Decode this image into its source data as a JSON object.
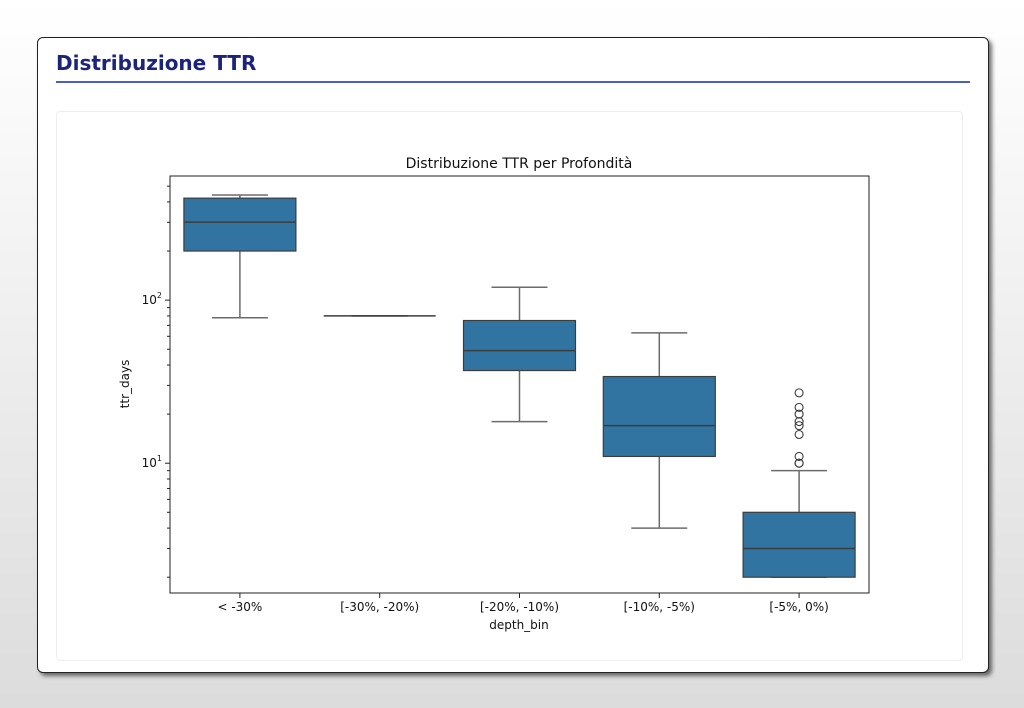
{
  "header": {
    "title": "Distribuzione TTR"
  },
  "chart_data": {
    "type": "box",
    "title": "Distribuzione TTR per Profondità",
    "xlabel": "depth_bin",
    "ylabel": "ttr_days",
    "yscale": "log",
    "ylim": [
      1.6,
      577
    ],
    "ytick_labels": [
      {
        "value": 10,
        "base": "10",
        "exp": "1"
      },
      {
        "value": 100,
        "base": "10",
        "exp": "2"
      }
    ],
    "categories": [
      "< -30%",
      "[-30%, -20%)",
      "[-20%, -10%)",
      "[-10%, -5%)",
      "[-5%, 0%)"
    ],
    "boxes": [
      {
        "whisker_low": 78,
        "q1": 200,
        "median": 301,
        "q3": 422,
        "whisker_high": 441,
        "outliers": []
      },
      {
        "whisker_low": 80,
        "q1": 80,
        "median": 80,
        "q3": 80,
        "whisker_high": 80,
        "outliers": []
      },
      {
        "whisker_low": 18,
        "q1": 37,
        "median": 49,
        "q3": 75,
        "whisker_high": 120,
        "outliers": []
      },
      {
        "whisker_low": 4,
        "q1": 11,
        "median": 17,
        "q3": 34,
        "whisker_high": 63,
        "outliers": []
      },
      {
        "whisker_low": 2,
        "q1": 2,
        "median": 3,
        "q3": 5,
        "whisker_high": 9,
        "outliers": [
          27,
          22,
          20,
          18,
          17,
          15,
          11,
          10,
          10
        ]
      }
    ],
    "colors": {
      "box": "#3274a1",
      "line": "#3d3d3d",
      "whisker": "#6b6b6b"
    },
    "grid": false
  }
}
